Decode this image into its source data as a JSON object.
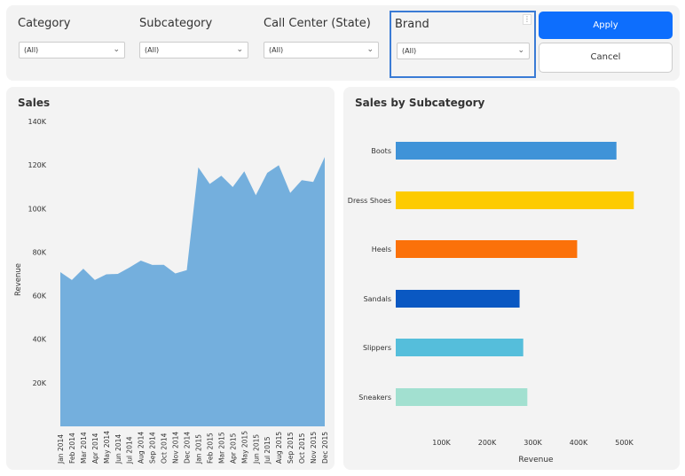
{
  "filters": [
    {
      "label": "Category",
      "value": "(All)"
    },
    {
      "label": "Subcategory",
      "value": "(All)"
    },
    {
      "label": "Call Center (State)",
      "value": "(All)"
    },
    {
      "label": "Brand",
      "value": "(All)"
    }
  ],
  "buttons": {
    "apply": "Apply",
    "cancel": "Cancel"
  },
  "colors": {
    "accent": "#0d6efd",
    "area": "#74afdd"
  },
  "chart_data": [
    {
      "type": "area",
      "title": "Sales",
      "xlabel": "",
      "ylabel": "Revenue",
      "ylim": [
        0,
        140000
      ],
      "yticks": [
        "20K",
        "40K",
        "60K",
        "80K",
        "100K",
        "120K",
        "140K"
      ],
      "ytick_values": [
        20000,
        40000,
        60000,
        80000,
        100000,
        120000,
        140000
      ],
      "x": [
        "Jan 2014",
        "Feb 2014",
        "Mar 2014",
        "Apr 2014",
        "May 2014",
        "Jun 2014",
        "Jul 2014",
        "Aug 2014",
        "Sep 2014",
        "Oct 2014",
        "Nov 2014",
        "Dec 2014",
        "Jan 2015",
        "Feb 2015",
        "Mar 2015",
        "Apr 2015",
        "May 2015",
        "Jun 2015",
        "Jul 2015",
        "Aug 2015",
        "Sep 2015",
        "Oct 2015",
        "Nov 2015",
        "Dec 2015"
      ],
      "values": [
        70800,
        67200,
        72400,
        67200,
        69800,
        70000,
        72900,
        76100,
        74100,
        74200,
        70200,
        71700,
        118900,
        111300,
        115100,
        109900,
        117100,
        106100,
        116400,
        119900,
        107200,
        113000,
        112200,
        123700
      ],
      "grid": false
    },
    {
      "type": "bar",
      "orientation": "horizontal",
      "title": "Sales by Subcategory",
      "xlabel": "Revenue",
      "ylabel": "",
      "xticks": [
        "100K",
        "200K",
        "300K",
        "400K",
        "500K"
      ],
      "xtick_values": [
        100000,
        200000,
        300000,
        400000,
        500000
      ],
      "categories": [
        "Boots",
        "Dress Shoes",
        "Heels",
        "Sandals",
        "Slippers",
        "Sneakers"
      ],
      "values": [
        483000,
        521000,
        397000,
        271000,
        279000,
        288000
      ],
      "colors": [
        "#3f93d8",
        "#fdcb00",
        "#fb710a",
        "#0a58c2",
        "#55bedb",
        "#a2e0d0"
      ],
      "grid": false
    }
  ]
}
